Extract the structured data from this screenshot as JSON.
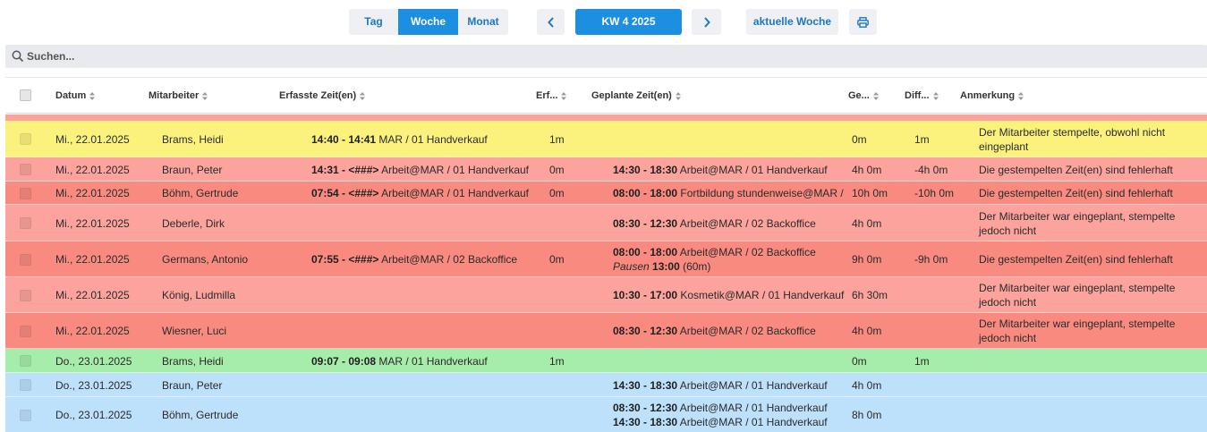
{
  "toolbar": {
    "view_tabs": [
      "Tag",
      "Woche",
      "Monat"
    ],
    "active_view": "Woche",
    "week_label": "KW 4 2025",
    "current_week_label": "aktuelle Woche"
  },
  "search": {
    "placeholder": "Suchen..."
  },
  "table": {
    "columns": [
      "Datum",
      "Mitarbeiter",
      "Erfasste Zeit(en)",
      "Erf...",
      "Geplante Zeit(en)",
      "Ge...",
      "Diff...",
      "Anmerkung"
    ],
    "rows": [
      {
        "color": "#fbf27e",
        "date": "Mi., 22.01.2025",
        "employee": "Brams, Heidi",
        "recorded": [
          {
            "time": "14:40 - 14:41",
            "desc": " MAR / 01 Handverkauf"
          }
        ],
        "erf": "1m",
        "planned": [],
        "ge": "0m",
        "diff": "1m",
        "note": "Der Mitarbeiter stempelte, obwohl nicht eingeplant"
      },
      {
        "color": "#fba39c",
        "date": "Mi., 22.01.2025",
        "employee": "Braun, Peter",
        "recorded": [
          {
            "time": "14:31 - <###>",
            "desc": " Arbeit@MAR / 01 Handverkauf"
          }
        ],
        "erf": "0m",
        "planned": [
          {
            "time": "14:30 - 18:30",
            "desc": " Arbeit@MAR / 01 Handverkauf"
          }
        ],
        "ge": "4h 0m",
        "diff": "-4h 0m",
        "note": "Die gestempelten Zeit(en) sind fehlerhaft"
      },
      {
        "color": "#f88a80",
        "date": "Mi., 22.01.2025",
        "employee": "Böhm, Gertrude",
        "recorded": [
          {
            "time": "07:54 - <###>",
            "desc": " Arbeit@MAR / 01 Handverkauf"
          }
        ],
        "erf": "0m",
        "planned": [
          {
            "time": "08:00 - 18:00",
            "desc": " Fortbildung stundenweise@MAR /"
          }
        ],
        "ge": "10h 0m",
        "diff": "-10h 0m",
        "note": "Die gestempelten Zeit(en) sind fehlerhaft"
      },
      {
        "color": "#fba39c",
        "date": "Mi., 22.01.2025",
        "employee": "Deberle, Dirk",
        "recorded": [],
        "erf": "",
        "planned": [
          {
            "time": "08:30 - 12:30",
            "desc": " Arbeit@MAR / 02 Backoffice"
          }
        ],
        "ge": "4h 0m",
        "diff": "",
        "note": "Der Mitarbeiter war eingeplant, stempelte jedoch nicht"
      },
      {
        "color": "#f88a80",
        "date": "Mi., 22.01.2025",
        "employee": "Germans, Antonio",
        "recorded": [
          {
            "time": "07:55 - <###>",
            "desc": " Arbeit@MAR / 02 Backoffice"
          }
        ],
        "erf": "0m",
        "planned": [
          {
            "time": "08:00 - 18:00",
            "desc": " Arbeit@MAR / 02 Backoffice"
          }
        ],
        "pause": {
          "label": "Pausen",
          "time": "13:00",
          "dur": " (60m)"
        },
        "ge": "9h 0m",
        "diff": "-9h 0m",
        "note": "Die gestempelten Zeit(en) sind fehlerhaft"
      },
      {
        "color": "#fba39c",
        "date": "Mi., 22.01.2025",
        "employee": "König, Ludmilla",
        "recorded": [],
        "erf": "",
        "planned": [
          {
            "time": "10:30 - 17:00",
            "desc": " Kosmetik@MAR / 01 Handverkauf"
          }
        ],
        "ge": "6h 30m",
        "diff": "",
        "note": "Der Mitarbeiter war eingeplant, stempelte jedoch nicht"
      },
      {
        "color": "#f88a80",
        "date": "Mi., 22.01.2025",
        "employee": "Wiesner, Luci",
        "recorded": [],
        "erf": "",
        "planned": [
          {
            "time": "08:30 - 12:30",
            "desc": " Arbeit@MAR / 02 Backoffice"
          }
        ],
        "ge": "4h 0m",
        "diff": "",
        "note": "Der Mitarbeiter war eingeplant, stempelte jedoch nicht"
      },
      {
        "color": "#a6ecaa",
        "date": "Do., 23.01.2025",
        "employee": "Brams, Heidi",
        "recorded": [
          {
            "time": "09:07 - 09:08",
            "desc": " MAR / 01 Handverkauf"
          }
        ],
        "erf": "1m",
        "planned": [],
        "ge": "0m",
        "diff": "1m",
        "note": ""
      },
      {
        "color": "#bde0fb",
        "date": "Do., 23.01.2025",
        "employee": "Braun, Peter",
        "recorded": [],
        "erf": "",
        "planned": [
          {
            "time": "14:30 - 18:30",
            "desc": " Arbeit@MAR / 01 Handverkauf"
          }
        ],
        "ge": "4h 0m",
        "diff": "",
        "note": ""
      },
      {
        "color": "#bde0fb",
        "date": "Do., 23.01.2025",
        "employee": "Böhm, Gertrude",
        "recorded": [],
        "erf": "",
        "planned": [
          {
            "time": "08:30 - 12:30",
            "desc": " Arbeit@MAR / 01 Handverkauf"
          },
          {
            "time": "14:30 - 18:30",
            "desc": " Arbeit@MAR / 01 Handverkauf"
          }
        ],
        "ge": "8h 0m",
        "diff": "",
        "note": ""
      }
    ]
  },
  "colors": {
    "accent": "#1d8fe1",
    "warning_yellow": "#fbf27e",
    "error_light": "#fba39c",
    "error_dark": "#f88a80",
    "ok_green": "#a6ecaa",
    "planned_blue": "#bde0fb"
  },
  "icons": [
    "chevron-left-icon",
    "chevron-right-icon",
    "print-icon",
    "search-icon",
    "sort-icon"
  ]
}
